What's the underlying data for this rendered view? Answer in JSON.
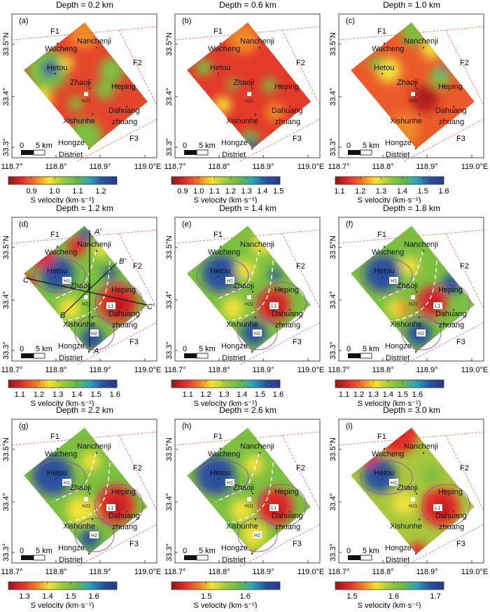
{
  "axes": {
    "lon_ticks": [
      "118.7°",
      "118.8°",
      "118.9°",
      "119.0°E"
    ],
    "lat_ticks": [
      "33.5°N",
      "33.4°",
      "33.3°"
    ]
  },
  "colorbar_label": "S velocity (km·s⁻¹)",
  "places": {
    "nanchenji": "Nanchenji",
    "wucheng": "Wucheng",
    "hetou": "Hetou",
    "zhaoji": "Zhaoji",
    "heping": "Heping",
    "dahuang": "Dahuang",
    "zhuang": "zhuang",
    "xishunhe": "Xishunhe",
    "hongze": "Hongze",
    "district": "Distriet"
  },
  "faults": [
    "F1",
    "F2",
    "F3"
  ],
  "well": "HJ1",
  "scale": {
    "zero": "0",
    "length": "5 km"
  },
  "anomaly_labels": {
    "h1": "H1",
    "l1": "L1",
    "h2": "H2"
  },
  "profiles": {
    "a": "A",
    "a2": "A'",
    "b": "B",
    "b2": "B'",
    "c": "C",
    "c2": "C'"
  },
  "colormap": [
    "#8b1a1a",
    "#e52b2b",
    "#f07a26",
    "#f7e232",
    "#9ccb3c",
    "#6ab74a",
    "#2aa6b8",
    "#2a4fa0",
    "#283a8a"
  ],
  "panels": [
    {
      "label": "(a)",
      "title": "Depth = 0.2 km",
      "colorbar": {
        "range": [
          0.8,
          1.27
        ],
        "ticks": [
          "0.9",
          "1.0",
          "1.1",
          "1.2"
        ]
      }
    },
    {
      "label": "(b)",
      "title": "Depth = 0.6 km",
      "colorbar": {
        "range": [
          0.83,
          1.51
        ],
        "ticks": [
          "0.9",
          "1.0",
          "1.1",
          "1.2",
          "1.3",
          "1.4",
          "1.5"
        ]
      }
    },
    {
      "label": "(c)",
      "title": "Depth = 1.0 km",
      "colorbar": {
        "range": [
          1.08,
          1.6
        ],
        "ticks": [
          "1.1",
          "1.2",
          "1.3",
          "1.4",
          "1.5",
          "1.6"
        ]
      }
    },
    {
      "label": "(d)",
      "title": "Depth = 1.2 km",
      "colorbar": {
        "range": [
          1.04,
          1.61
        ],
        "ticks": [
          "1.1",
          "1.2",
          "1.3",
          "1.4",
          "1.5",
          "1.6"
        ]
      }
    },
    {
      "label": "(e)",
      "title": "Depth = 1.4 km",
      "colorbar": {
        "range": [
          1.01,
          1.61
        ],
        "ticks": [
          "1.1",
          "1.2",
          "1.3",
          "1.4",
          "1.5",
          "1.6"
        ]
      }
    },
    {
      "label": "(f)",
      "title": "Depth = 1.8 km",
      "colorbar": {
        "range": [
          1.04,
          1.78
        ],
        "ticks": [
          "1.1",
          "1.2",
          "1.3",
          "1.4",
          "1.5",
          "1.6"
        ]
      }
    },
    {
      "label": "(g)",
      "title": "Depth = 2.2 km",
      "colorbar": {
        "range": [
          1.23,
          1.7
        ],
        "ticks": [
          "1.3",
          "1.4",
          "1.5",
          "1.6"
        ]
      }
    },
    {
      "label": "(h)",
      "title": "Depth = 2.6 km",
      "colorbar": {
        "range": [
          1.41,
          1.69
        ],
        "ticks": [
          "1.5",
          "1.6"
        ]
      }
    },
    {
      "label": "(i)",
      "title": "Depth = 3.0 km",
      "colorbar": {
        "range": [
          1.46,
          1.72
        ],
        "ticks": [
          "1.5",
          "1.6",
          "1.7"
        ]
      }
    }
  ]
}
